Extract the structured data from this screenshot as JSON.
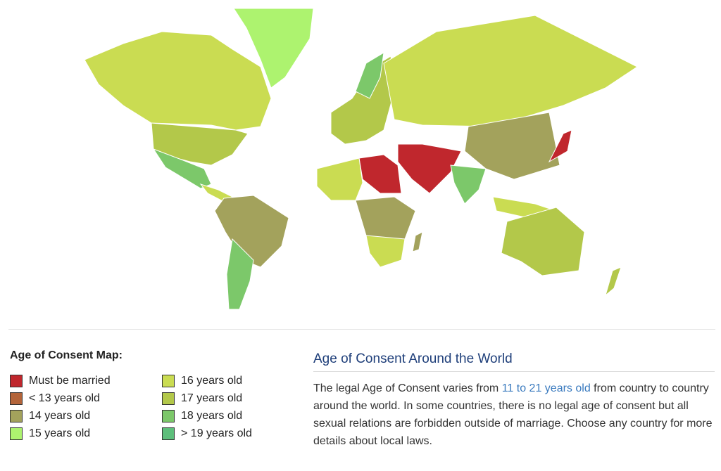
{
  "legend": {
    "title": "Age of Consent Map:",
    "items": [
      {
        "label": "Must be married",
        "color": "#c0272d"
      },
      {
        "label": "< 13 years old",
        "color": "#b3643a"
      },
      {
        "label": "14 years old",
        "color": "#a3a25c"
      },
      {
        "label": "15 years old",
        "color": "#adf36f"
      },
      {
        "label": "16 years old",
        "color": "#cadc52"
      },
      {
        "label": "17 years old",
        "color": "#b3c84a"
      },
      {
        "label": "18 years old",
        "color": "#7cc86a"
      },
      {
        "label": "> 19 years old",
        "color": "#5dbf7b"
      }
    ]
  },
  "article": {
    "title": "Age of Consent Around the World",
    "text_before": "The legal Age of Consent varies from ",
    "link": "11 to 21 years old",
    "text_after": " from country to country around the world. In some countries, there is no legal age of consent but all sexual relations are forbidden outside of marriage. Choose any country for more details about local laws."
  }
}
